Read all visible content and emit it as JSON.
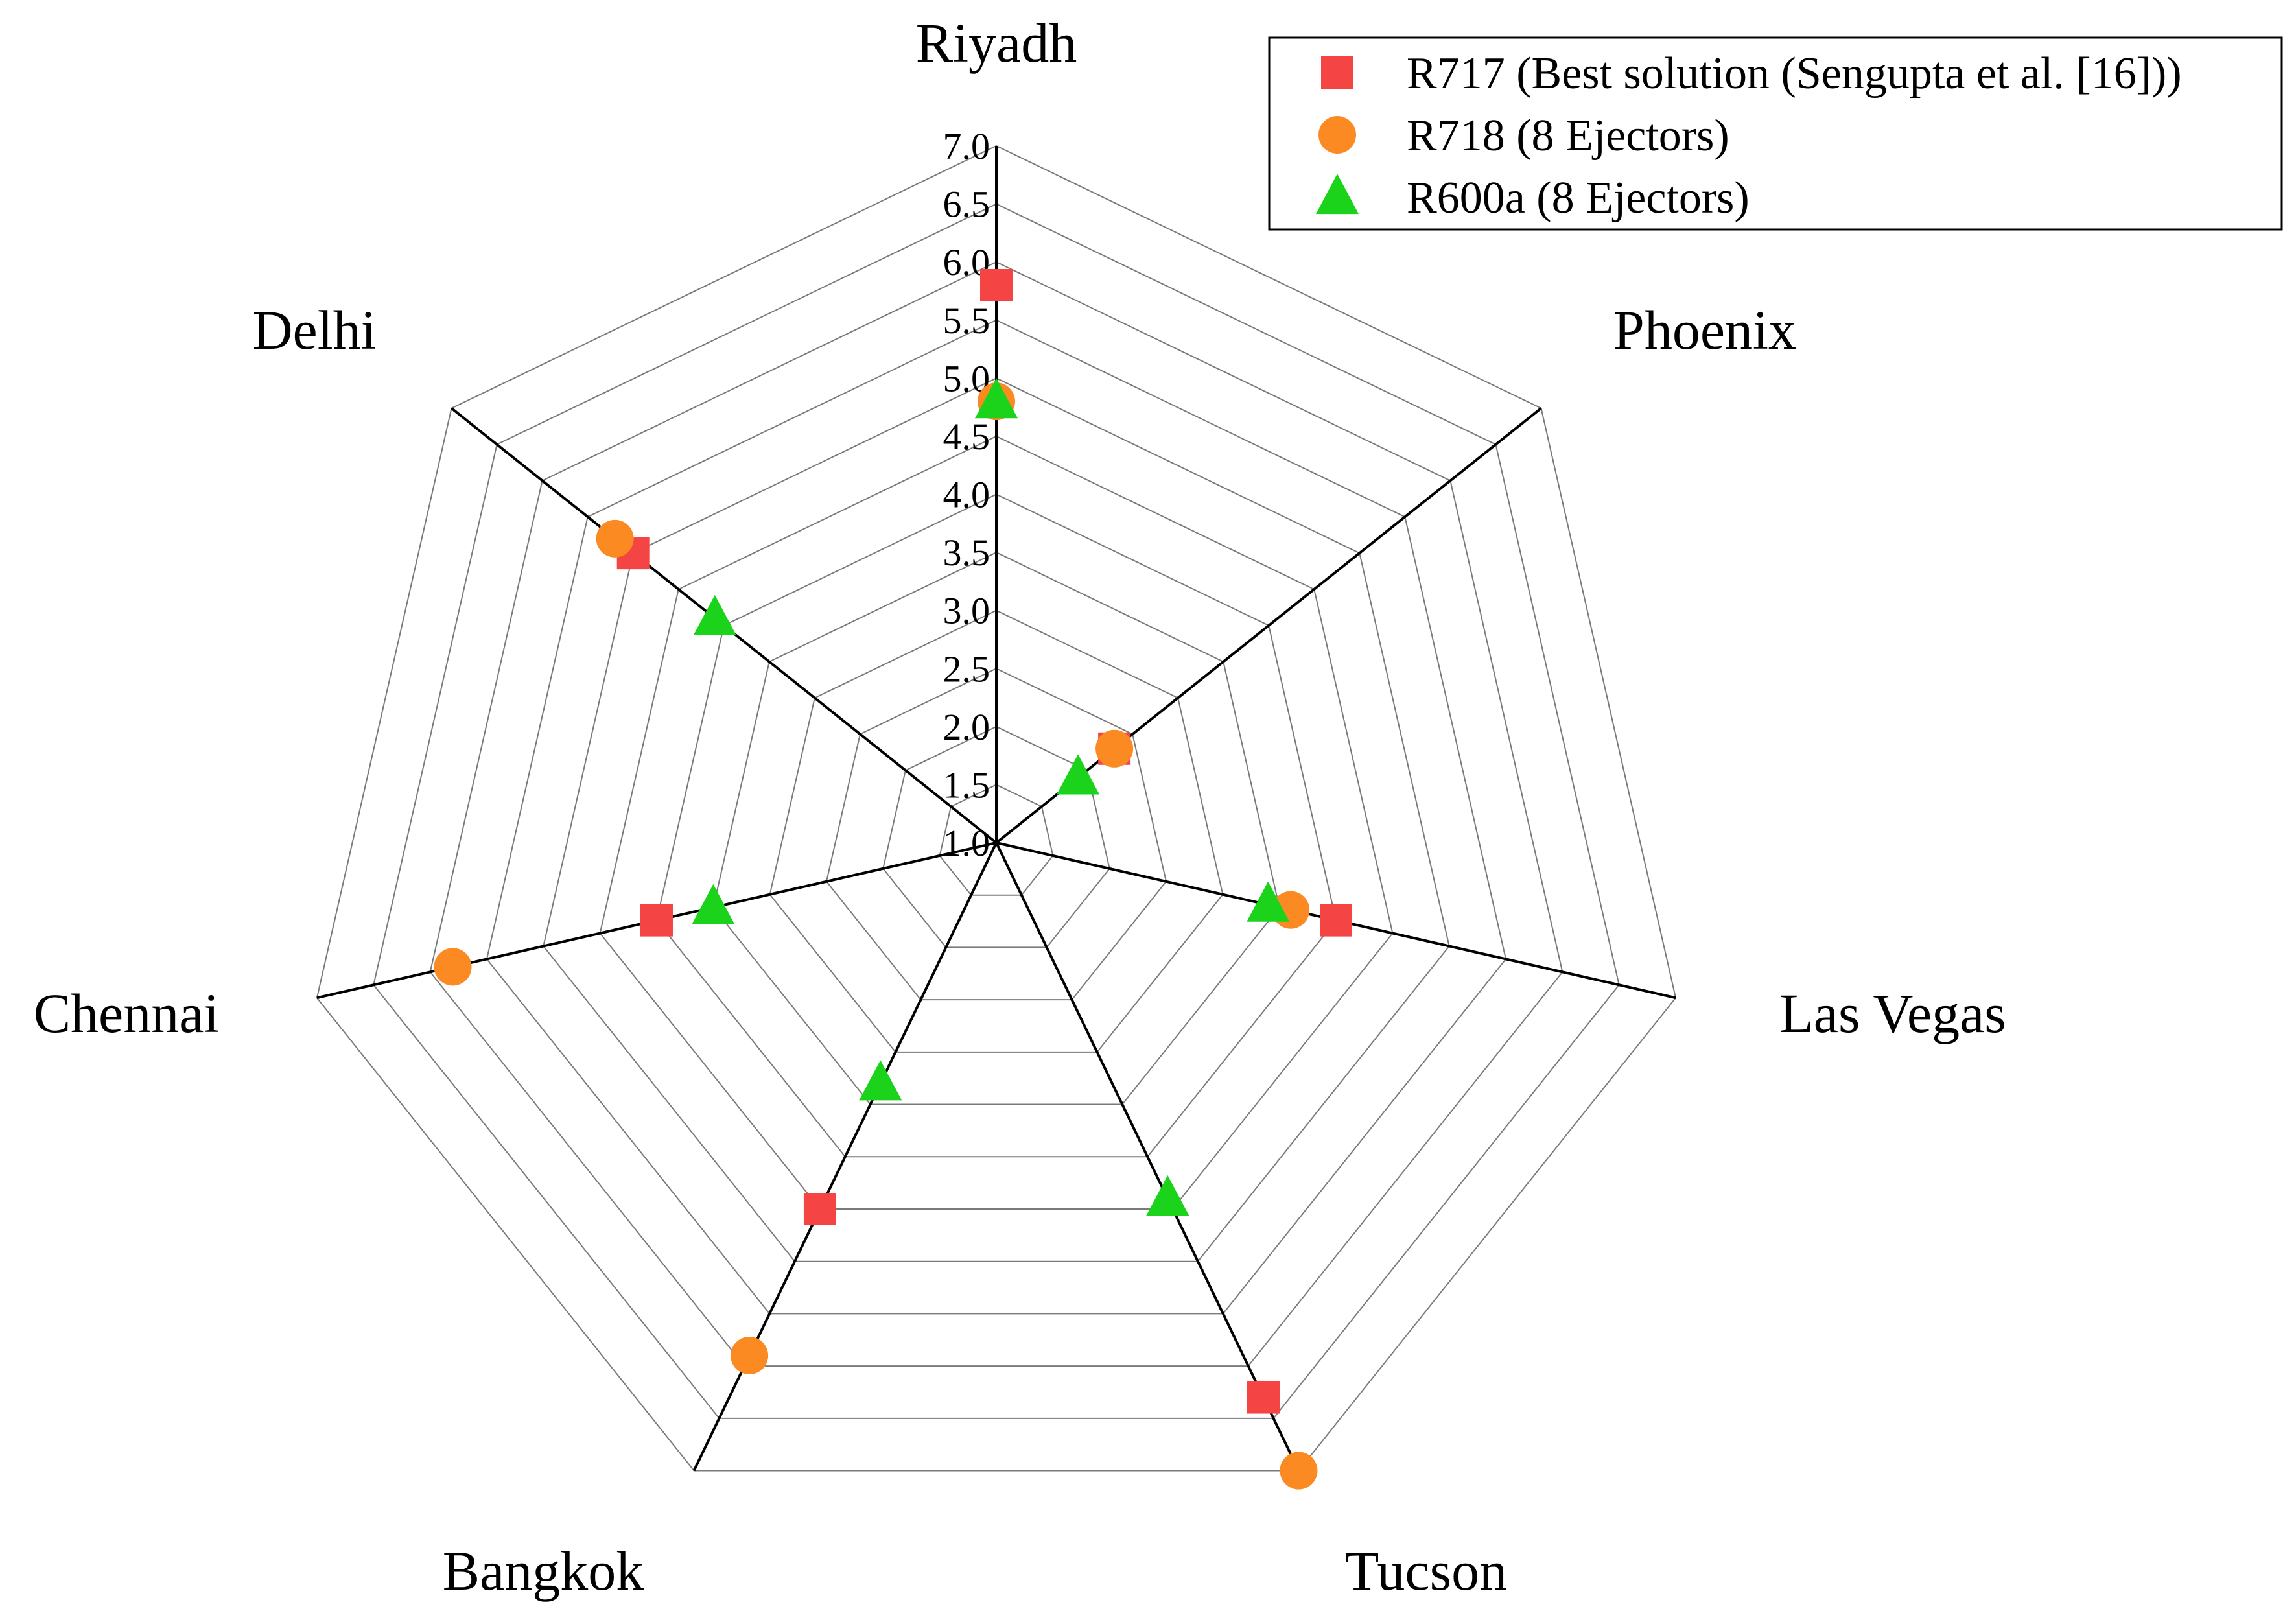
{
  "chart_data": {
    "type": "radar",
    "axes": [
      "Riyadh",
      "Phoenix",
      "Las Vegas",
      "Tucson",
      "Bangkok",
      "Chennai",
      "Delhi"
    ],
    "rlim": [
      1.0,
      7.0
    ],
    "ticks": [
      "1.0",
      "1.5",
      "2.0",
      "2.5",
      "3.0",
      "3.5",
      "4.0",
      "4.5",
      "5.0",
      "5.5",
      "6.0",
      "6.5",
      "7.0"
    ],
    "tick_values": [
      1.0,
      1.5,
      2.0,
      2.5,
      3.0,
      3.5,
      4.0,
      4.5,
      5.0,
      5.5,
      6.0,
      6.5,
      7.0
    ],
    "grid": true,
    "legend_position": "top-right",
    "series": [
      {
        "name": "R717 (Best solution (Sengupta et al. [16]))",
        "marker": "square",
        "color": "#f44444",
        "values": [
          5.8,
          2.3,
          4.0,
          6.3,
          4.5,
          4.0,
          5.0
        ]
      },
      {
        "name": "R718 (8 Ejectors)",
        "marker": "circle",
        "color": "#fb8a22",
        "values": [
          4.8,
          2.3,
          3.6,
          7.0,
          5.9,
          5.8,
          5.2
        ]
      },
      {
        "name": "R600a (8 Ejectors)",
        "marker": "triangle",
        "color": "#1bd31b",
        "values": [
          4.8,
          1.9,
          3.4,
          4.4,
          3.3,
          3.5,
          4.1
        ]
      }
    ]
  }
}
